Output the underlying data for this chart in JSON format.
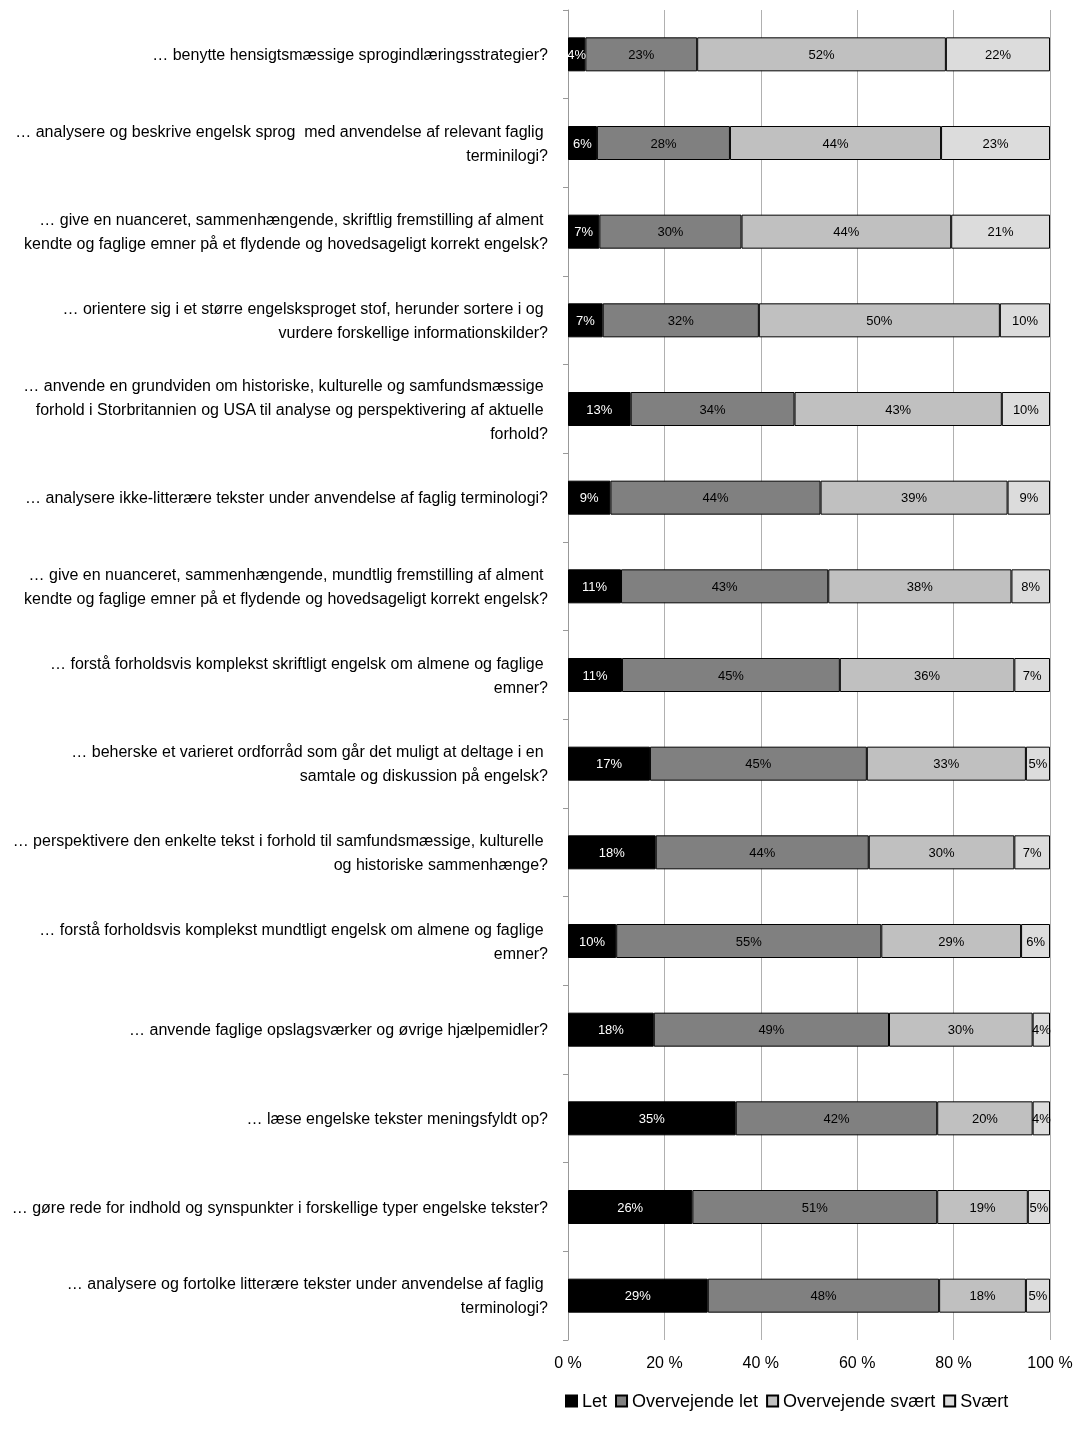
{
  "chart_data": {
    "type": "bar",
    "orientation": "horizontal",
    "stacked": true,
    "categories": [
      "… benytte hensigtsmæssige sprogindlæringsstrategier?",
      "… analysere og beskrive engelsk sprog  med anvendelse af relevant faglig terminilogi?",
      "… give en nuanceret, sammenhængende, skriftlig fremstilling af alment kendte og faglige emner på et flydende og hovedsageligt korrekt engelsk?",
      "… orientere sig i et større engelsksproget stof, herunder sortere i og vurdere forskellige informationskilder?",
      "… anvende en grundviden om historiske, kulturelle og samfundsmæssige forhold i Storbritannien og USA til analyse og perspektivering af aktuelle forhold?",
      "… analysere ikke-litterære tekster under anvendelse af faglig terminologi?",
      "… give en nuanceret, sammenhængende, mundtlig fremstilling af alment kendte og faglige emner på et flydende og hovedsageligt korrekt engelsk?",
      "… forstå forholdsvis komplekst skriftligt engelsk om almene og faglige emner?",
      "… beherske et varieret ordforråd som går det muligt at deltage i en samtale og diskussion på engelsk?",
      "… perspektivere den enkelte tekst i forhold til samfundsmæssige, kulturelle og historiske sammenhænge?",
      "… forstå forholdsvis komplekst mundtligt engelsk om almene og faglige emner?",
      "… anvende faglige opslagsværker og øvrige hjælpemidler?",
      "… læse engelske tekster meningsfyldt op?",
      "… gøre rede for indhold og synspunkter i forskellige typer engelske tekster?",
      "… analysere og fortolke litterære tekster under anvendelse af faglig terminologi?"
    ],
    "series": [
      {
        "name": "Let",
        "color": "#000000",
        "values": [
          3.6,
          6.0,
          6.5,
          7.2,
          13,
          8.8,
          11,
          11.2,
          17,
          18.2,
          10,
          17.8,
          34.8,
          25.8,
          29
        ],
        "value_labels": [
          "4%",
          "6%",
          "7%",
          "7%",
          "13%",
          "9%",
          "11%",
          "11%",
          "17%",
          "18%",
          "10%",
          "18%",
          "35%",
          "26%",
          "29%"
        ]
      },
      {
        "name": "Overvejende let",
        "color": "#808080",
        "values": [
          23.2,
          27.6,
          29.5,
          32.4,
          34,
          43.6,
          43,
          45.2,
          45,
          44.2,
          55,
          48.8,
          41.8,
          50.8,
          48
        ],
        "value_labels": [
          "23%",
          "28%",
          "30%",
          "32%",
          "34%",
          "44%",
          "43%",
          "45%",
          "45%",
          "44%",
          "55%",
          "49%",
          "42%",
          "51%",
          "48%"
        ]
      },
      {
        "name": "Overvejende svært",
        "color": "#c0c0c0",
        "values": [
          51.6,
          43.8,
          43.5,
          50.0,
          43,
          38.8,
          38,
          36.2,
          33,
          30.2,
          29,
          29.8,
          19.8,
          18.8,
          18
        ],
        "value_labels": [
          "52%",
          "44%",
          "44%",
          "50%",
          "43%",
          "39%",
          "38%",
          "36%",
          "33%",
          "30%",
          "29%",
          "30%",
          "20%",
          "19%",
          "18%"
        ]
      },
      {
        "name": "Svært",
        "color": "#dcdcdc",
        "values": [
          21.6,
          22.6,
          20.5,
          10.4,
          10,
          8.8,
          8,
          7.4,
          5,
          7.4,
          6,
          3.6,
          3.6,
          4.6,
          5
        ],
        "value_labels": [
          "22%",
          "23%",
          "21%",
          "10%",
          "10%",
          "9%",
          "8%",
          "7%",
          "5%",
          "7%",
          "6%",
          "4%",
          "4%",
          "5%",
          "5%"
        ]
      }
    ],
    "xlim": [
      0,
      100
    ],
    "xticks": [
      {
        "value": 0,
        "label": "0 %"
      },
      {
        "value": 20,
        "label": "20 %"
      },
      {
        "value": 40,
        "label": "40 %"
      },
      {
        "value": 60,
        "label": "60 %"
      },
      {
        "value": 80,
        "label": "80 %"
      },
      {
        "value": 100,
        "label": "100 %"
      }
    ],
    "grid": "x",
    "legend": "bottom"
  }
}
